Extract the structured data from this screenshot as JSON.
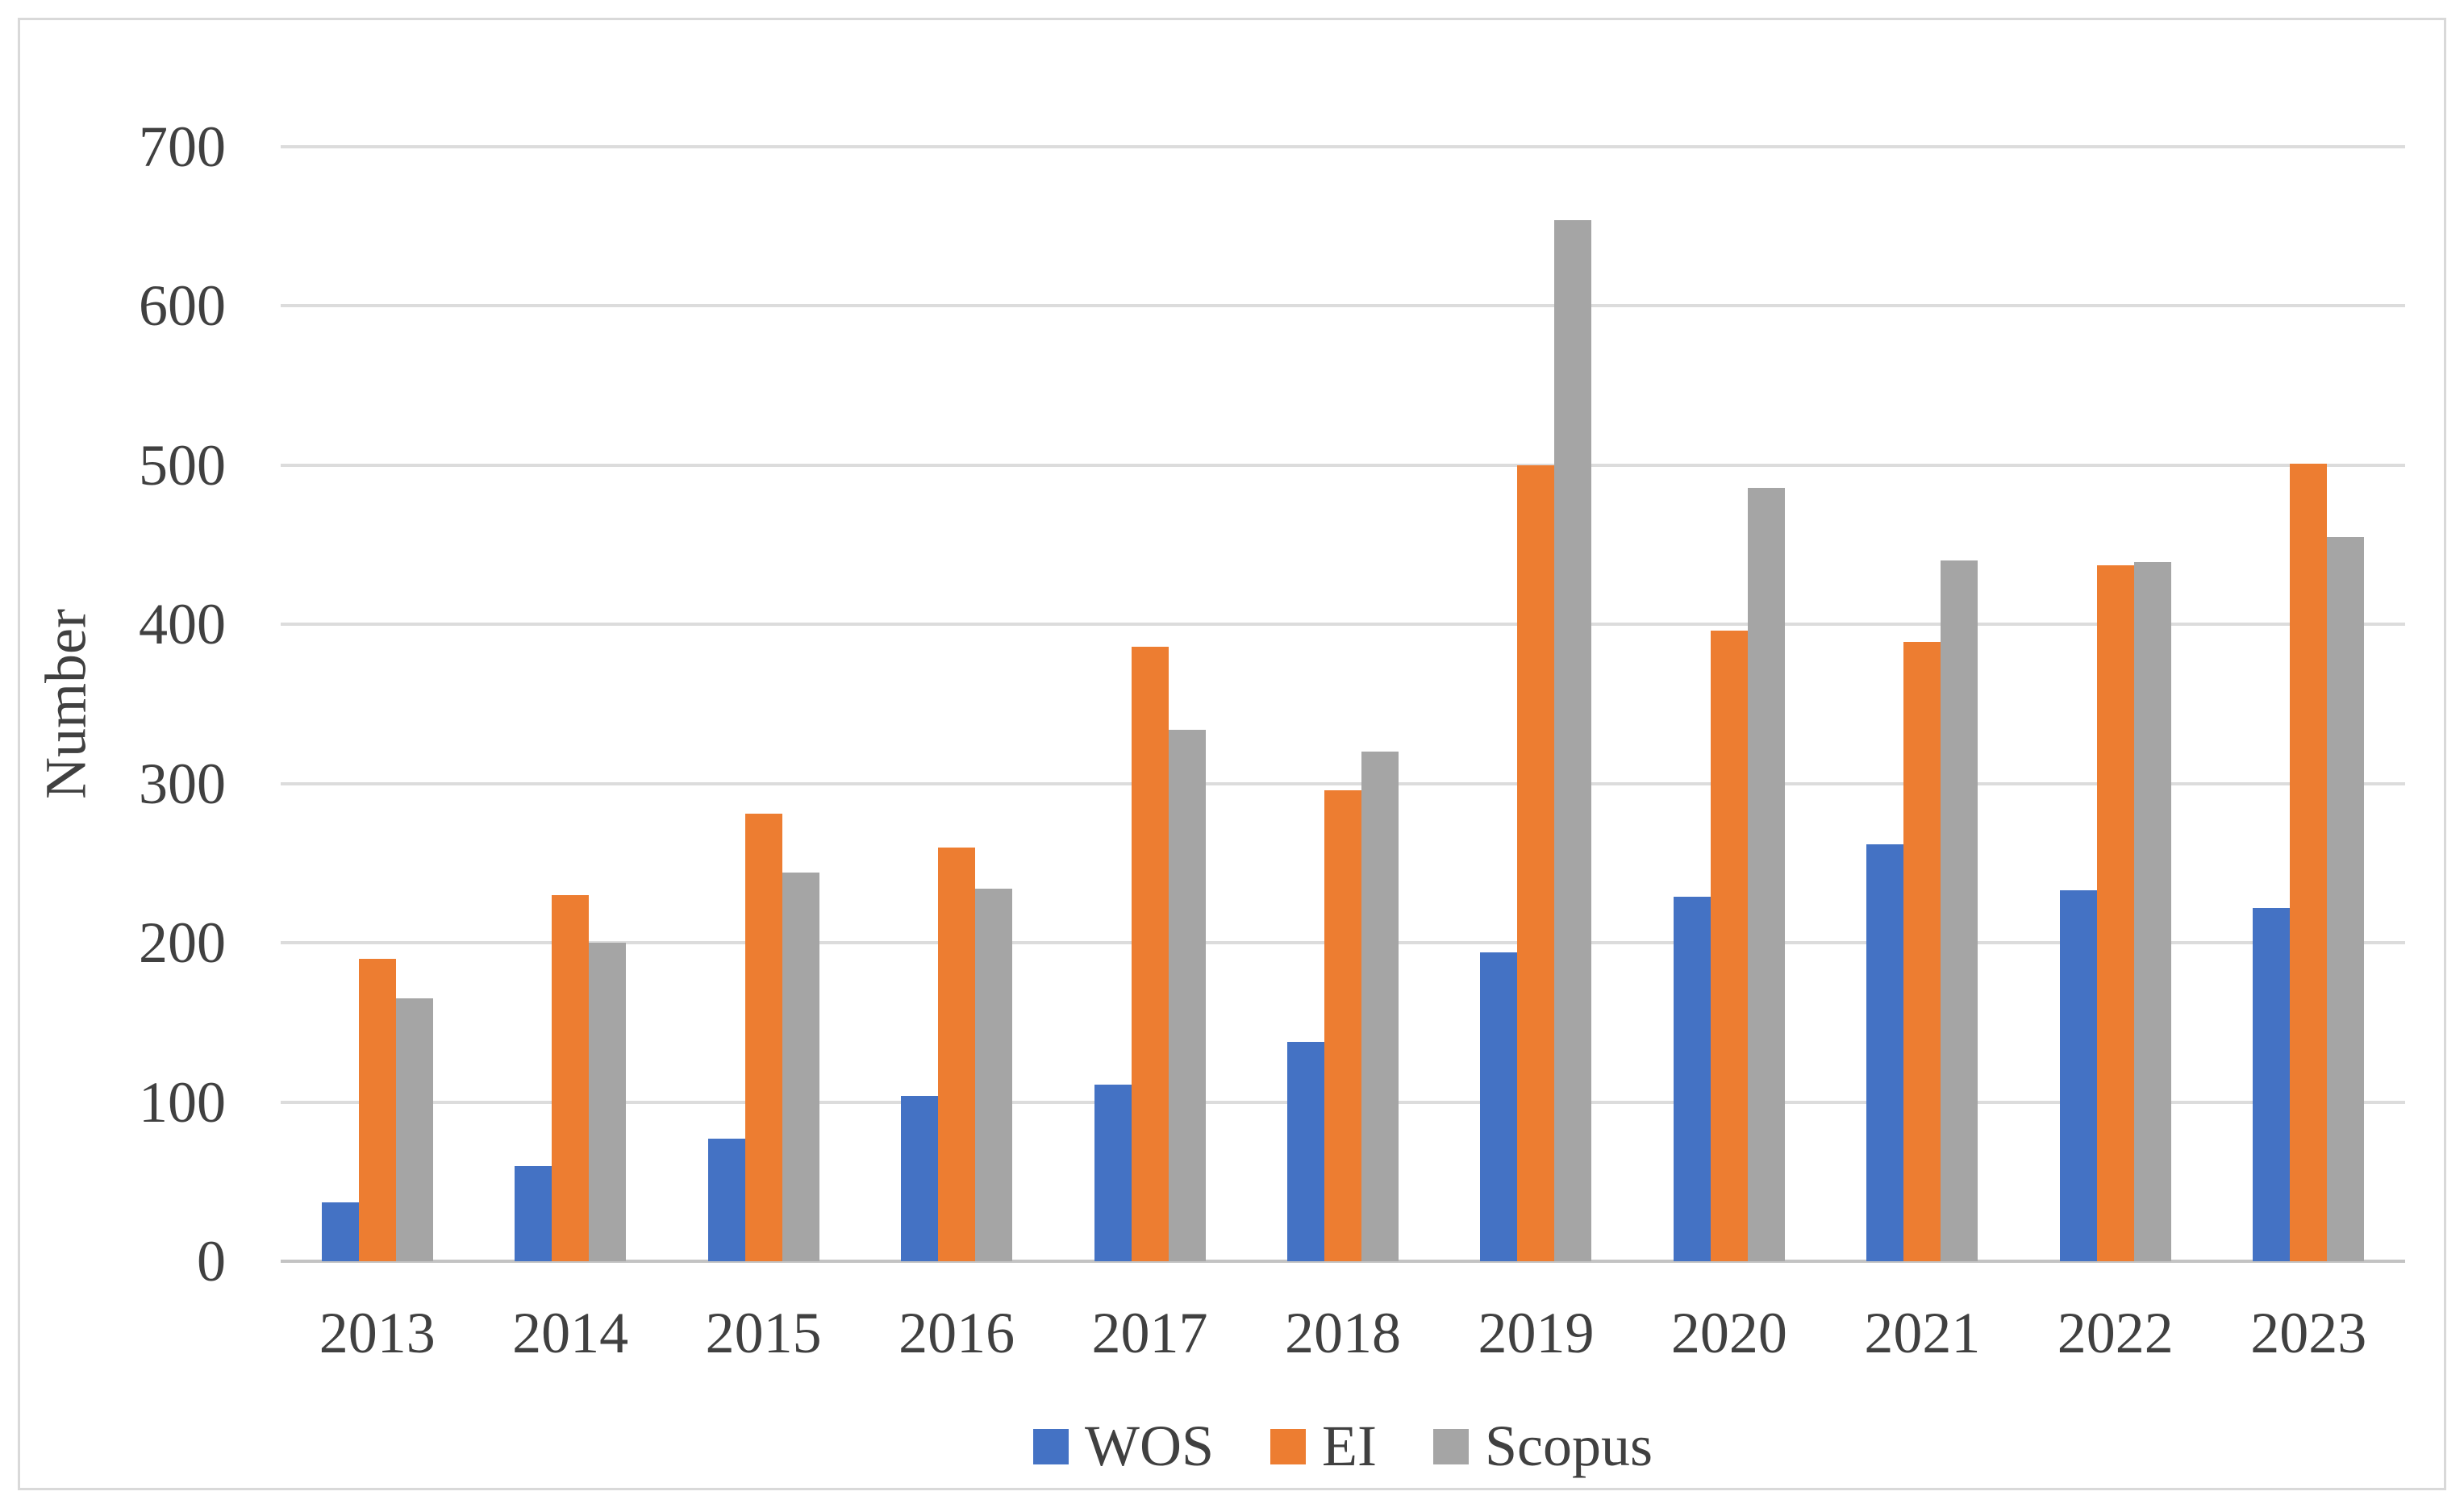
{
  "chart_data": {
    "type": "bar",
    "title": "",
    "ylabel": "Number",
    "xlabel": "",
    "categories": [
      "2013",
      "2014",
      "2015",
      "2016",
      "2017",
      "2018",
      "2019",
      "2020",
      "2021",
      "2022",
      "2023"
    ],
    "series": [
      {
        "name": "WOS",
        "color": "#4472C4",
        "values": [
          37,
          60,
          77,
          104,
          111,
          138,
          194,
          229,
          262,
          233,
          222
        ]
      },
      {
        "name": "EI",
        "color": "#ED7D31",
        "values": [
          190,
          230,
          281,
          260,
          386,
          296,
          500,
          396,
          389,
          437,
          501
        ]
      },
      {
        "name": "Scopus",
        "color": "#A5A5A5",
        "values": [
          165,
          200,
          244,
          234,
          334,
          320,
          654,
          486,
          440,
          439,
          455
        ]
      }
    ],
    "ylim": [
      0,
      700
    ],
    "yticks": [
      0,
      100,
      200,
      300,
      400,
      500,
      600,
      700
    ],
    "grid": true,
    "legend_position": "bottom"
  },
  "styles": {
    "gridline_color": "#dcdcdc",
    "baseline_color": "#c3c3c3",
    "frame_border_color": "#d9d9d9",
    "text_color": "#404040",
    "background": "#ffffff"
  }
}
